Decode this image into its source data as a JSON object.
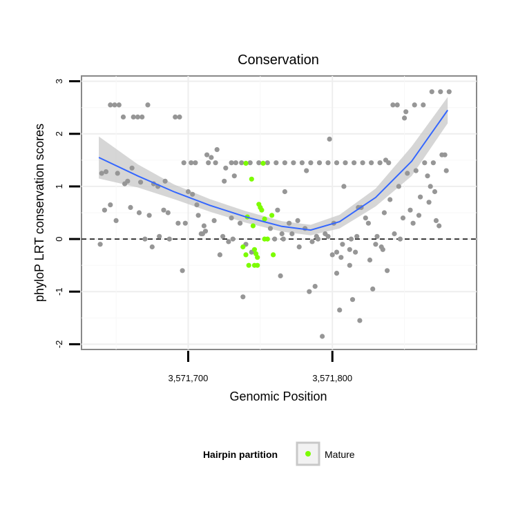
{
  "chart_data": {
    "type": "scatter",
    "title": "Conservation",
    "xlabel": "Genomic Position",
    "ylabel": "phyloP LRT conservation scores",
    "xlim": [
      3571626,
      3571900
    ],
    "ylim": [
      -2.1,
      3.1
    ],
    "x_ticks": [
      {
        "value": 3571700,
        "label": "3,571,700"
      },
      {
        "value": 3571800,
        "label": "3,571,800"
      }
    ],
    "y_ticks": [
      {
        "value": -2,
        "label": "-2"
      },
      {
        "value": -1,
        "label": "-1"
      },
      {
        "value": 0,
        "label": "0"
      },
      {
        "value": 1,
        "label": "1"
      },
      {
        "value": 2,
        "label": "2"
      },
      {
        "value": 3,
        "label": "3"
      }
    ],
    "reference_line": {
      "y": 0,
      "style": "dashed",
      "color": "#000000"
    },
    "colors": {
      "other": "#969696",
      "mature": "#7cfc00",
      "smooth": "#3366ff",
      "band": "#c8c8c8"
    },
    "legend": {
      "title": "Hairpin partition",
      "entries": [
        {
          "label": "Mature",
          "color": "#7cfc00"
        }
      ],
      "placement": "bottom"
    },
    "smooth": {
      "x": [
        3571638,
        3571665,
        3571690,
        3571715,
        3571740,
        3571765,
        3571785,
        3571805,
        3571830,
        3571855,
        3571880
      ],
      "y": [
        1.55,
        1.2,
        0.9,
        0.64,
        0.42,
        0.24,
        0.17,
        0.33,
        0.79,
        1.48,
        2.45
      ],
      "lower": [
        1.15,
        0.98,
        0.76,
        0.52,
        0.31,
        0.14,
        0.07,
        0.2,
        0.62,
        1.2,
        2.2
      ],
      "upper": [
        1.95,
        1.42,
        1.04,
        0.76,
        0.53,
        0.34,
        0.27,
        0.46,
        0.96,
        1.76,
        2.7
      ]
    },
    "series": [
      {
        "name": "Other",
        "color": "#969696",
        "x": [
          3571646,
          3571649,
          3571652,
          3571655,
          3571662,
          3571665,
          3571668,
          3571672,
          3571691,
          3571694,
          3571697,
          3571702,
          3571705,
          3571714,
          3571719,
          3571725,
          3571730,
          3571733,
          3571737,
          3571743,
          3571749,
          3571755,
          3571761,
          3571767,
          3571773,
          3571779,
          3571785,
          3571791,
          3571797,
          3571803,
          3571809,
          3571815,
          3571821,
          3571827,
          3571833,
          3571839,
          3571845,
          3571851,
          3571857,
          3571863,
          3571869,
          3571875,
          3571881,
          3571640,
          3571643,
          3571651,
          3571658,
          3571667,
          3571676,
          3571683,
          3571700,
          3571707,
          3571713,
          3571716,
          3571720,
          3571726,
          3571732,
          3571736,
          3571740,
          3571744,
          3571757,
          3571762,
          3571767,
          3571770,
          3571776,
          3571781,
          3571786,
          3571789,
          3571795,
          3571800,
          3571806,
          3571812,
          3571818,
          3571825,
          3571830,
          3571835,
          3571840,
          3571846,
          3571852,
          3571858,
          3571864,
          3571870,
          3571876,
          3571642,
          3571650,
          3571660,
          3571666,
          3571673,
          3571686,
          3571693,
          3571712,
          3571722,
          3571728,
          3571760,
          3571765,
          3571790,
          3571797,
          3571803,
          3571807,
          3571812,
          3571816,
          3571826,
          3571834,
          3571843,
          3571849,
          3571856,
          3571861,
          3571867,
          3571871,
          3571879,
          3571639,
          3571661,
          3571680,
          3571696,
          3571710,
          3571738,
          3571764,
          3571784,
          3571798,
          3571801,
          3571805,
          3571814,
          3571819,
          3571828,
          3571838,
          3571860,
          3571872,
          3571874,
          3571646,
          3571656,
          3571670,
          3571675,
          3571679,
          3571684,
          3571703,
          3571706,
          3571711,
          3571718,
          3571724,
          3571731,
          3571766,
          3571772,
          3571777,
          3571793,
          3571808,
          3571820,
          3571823,
          3571831,
          3571837,
          3571842,
          3571850,
          3571854,
          3571866,
          3571878,
          3571687,
          3571698,
          3571709,
          3571730,
          3571782,
          3571788,
          3571803,
          3571813,
          3571817,
          3571836,
          3571847,
          3571868
        ],
        "y": [
          2.55,
          2.55,
          2.55,
          2.32,
          2.32,
          2.32,
          2.32,
          2.55,
          2.32,
          2.32,
          1.45,
          1.45,
          1.45,
          1.45,
          1.45,
          1.1,
          1.45,
          1.45,
          1.45,
          1.45,
          1.45,
          1.45,
          1.45,
          1.45,
          1.45,
          1.45,
          1.45,
          1.45,
          1.45,
          1.45,
          1.45,
          1.45,
          1.45,
          1.45,
          1.45,
          1.45,
          2.55,
          2.42,
          2.55,
          2.55,
          2.8,
          2.8,
          2.8,
          1.25,
          1.28,
          1.25,
          1.1,
          1.08,
          1.05,
          0.55,
          0.9,
          0.45,
          1.6,
          1.55,
          1.7,
          1.35,
          1.2,
          0.3,
          -0.1,
          -0.25,
          0.2,
          0.55,
          0.9,
          0.3,
          0.35,
          0.2,
          -0.05,
          0.05,
          0.1,
          -0.3,
          -0.35,
          -0.5,
          0.6,
          0.3,
          -0.1,
          -0.2,
          0.75,
          1.0,
          1.25,
          1.3,
          1.45,
          1.45,
          1.6,
          0.55,
          0.35,
          0.6,
          0.5,
          0.45,
          0.5,
          0.3,
          0.15,
          -0.3,
          -0.05,
          0.0,
          0.1,
          0.0,
          0.05,
          -0.25,
          -0.1,
          -0.2,
          -0.25,
          -0.4,
          -0.15,
          0.1,
          0.4,
          0.3,
          0.8,
          0.7,
          0.9,
          1.3,
          -0.1,
          1.35,
          0.05,
          -0.6,
          0.1,
          -1.1,
          -0.7,
          -1.0,
          1.9,
          0.3,
          -1.35,
          -1.15,
          -1.55,
          -0.95,
          -0.6,
          0.45,
          0.35,
          0.25,
          0.65,
          1.05,
          0.0,
          -0.15,
          1.0,
          1.1,
          0.85,
          0.65,
          0.25,
          0.35,
          0.05,
          0.0,
          0.0,
          0.1,
          -0.15,
          -1.85,
          1.0,
          0.6,
          0.4,
          0.05,
          1.5,
          2.55,
          2.3,
          0.55,
          1.2,
          1.6,
          0.0,
          0.3,
          0.1,
          0.4,
          1.3,
          -0.9,
          -0.65,
          0.0,
          0.05,
          0.5,
          0.0,
          1.0
        ]
      },
      {
        "name": "Mature",
        "color": "#7cfc00",
        "x": [
          3571740,
          3571752,
          3571744,
          3571749,
          3571750,
          3571751,
          3571753,
          3571758,
          3571745,
          3571741,
          3571753,
          3571755,
          3571738,
          3571740,
          3571746,
          3571747,
          3571748,
          3571759,
          3571742,
          3571746,
          3571748
        ],
        "y": [
          1.44,
          1.44,
          1.14,
          0.66,
          0.6,
          0.55,
          0.38,
          0.45,
          0.25,
          0.42,
          0.0,
          0.0,
          -0.15,
          -0.3,
          -0.2,
          -0.28,
          -0.35,
          -0.3,
          -0.5,
          -0.5,
          -0.5
        ]
      }
    ]
  }
}
